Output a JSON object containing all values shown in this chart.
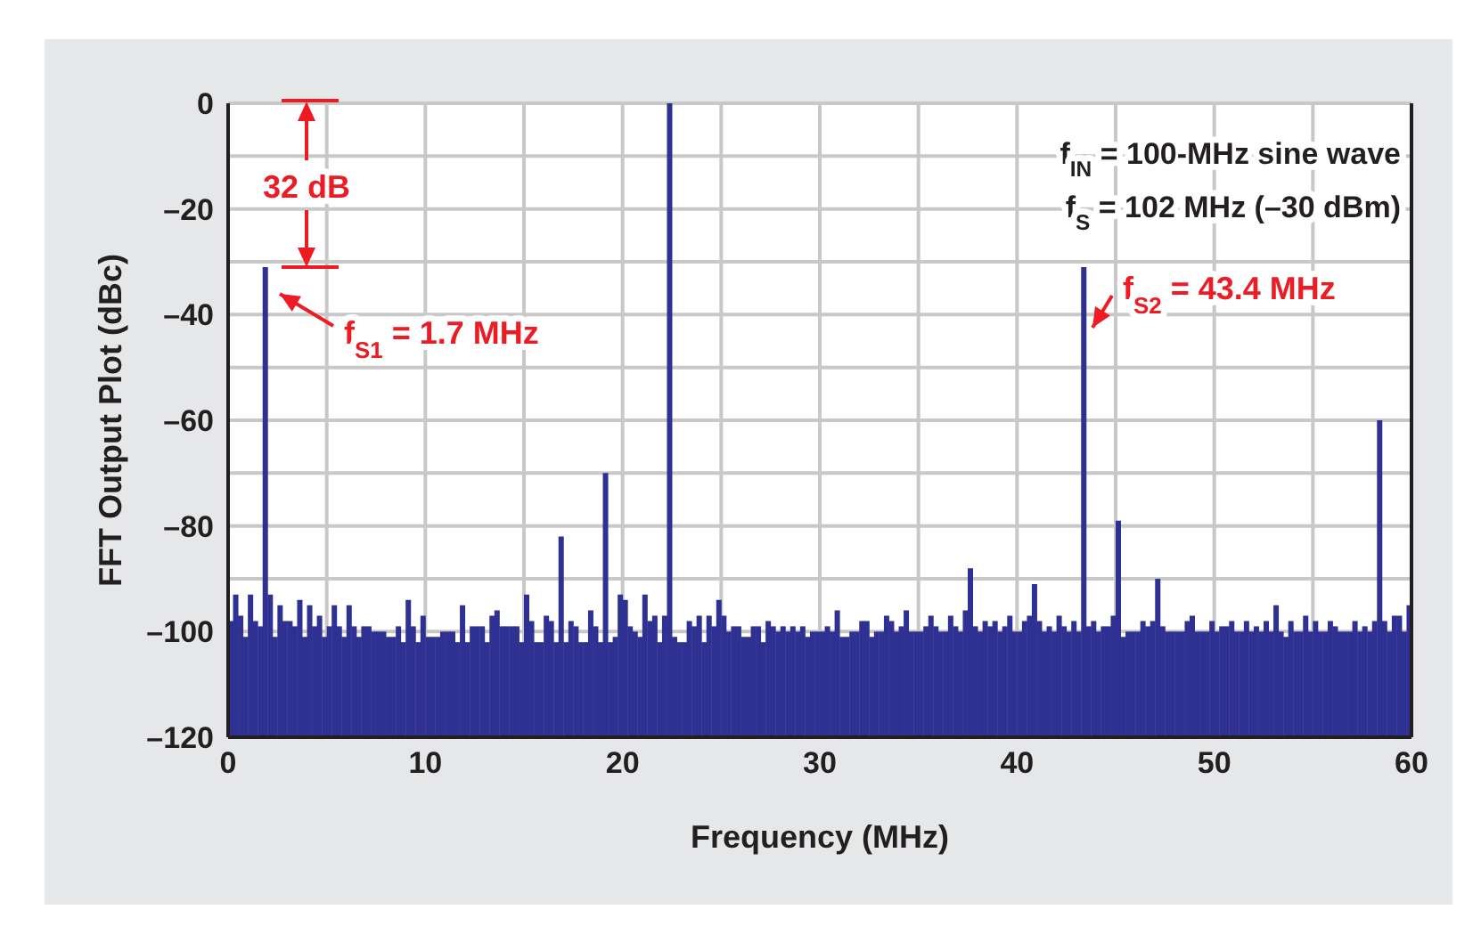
{
  "chart_data": {
    "type": "bar",
    "xlabel": "Frequency (MHz)",
    "ylabel": "FFT Output Plot (dBc)",
    "color": "#2e3192",
    "x": [
      0.125,
      0.375,
      0.625,
      0.875,
      1.125,
      1.375,
      1.625,
      1.875,
      2.125,
      2.375,
      2.625,
      2.875,
      3.125,
      3.375,
      3.625,
      3.875,
      4.125,
      4.375,
      4.625,
      4.875,
      5.125,
      5.375,
      5.625,
      5.875,
      6.125,
      6.375,
      6.625,
      6.875,
      7.125,
      7.375,
      7.625,
      7.875,
      8.125,
      8.375,
      8.625,
      8.875,
      9.125,
      9.375,
      9.625,
      9.875,
      10.125,
      10.375,
      10.625,
      10.875,
      11.125,
      11.375,
      11.625,
      11.875,
      12.125,
      12.375,
      12.625,
      12.875,
      13.125,
      13.375,
      13.625,
      13.875,
      14.125,
      14.375,
      14.625,
      14.875,
      15.125,
      15.375,
      15.625,
      15.875,
      16.125,
      16.375,
      16.625,
      16.875,
      17.125,
      17.375,
      17.625,
      17.875,
      18.125,
      18.375,
      18.625,
      18.875,
      19.125,
      19.375,
      19.625,
      19.875,
      20.125,
      20.375,
      20.625,
      20.875,
      21.125,
      21.375,
      21.625,
      21.875,
      22.125,
      22.375,
      22.625,
      22.875,
      23.125,
      23.375,
      23.625,
      23.875,
      24.125,
      24.375,
      24.625,
      24.875,
      25.125,
      25.375,
      25.625,
      25.875,
      26.125,
      26.375,
      26.625,
      26.875,
      27.125,
      27.375,
      27.625,
      27.875,
      28.125,
      28.375,
      28.625,
      28.875,
      29.125,
      29.375,
      29.625,
      29.875,
      30.125,
      30.375,
      30.625,
      30.875,
      31.125,
      31.375,
      31.625,
      31.875,
      32.125,
      32.375,
      32.625,
      32.875,
      33.125,
      33.375,
      33.625,
      33.875,
      34.125,
      34.375,
      34.625,
      34.875,
      35.125,
      35.375,
      35.625,
      35.875,
      36.125,
      36.375,
      36.625,
      36.875,
      37.125,
      37.375,
      37.625,
      37.875,
      38.125,
      38.375,
      38.625,
      38.875,
      39.125,
      39.375,
      39.625,
      39.875,
      40.125,
      40.375,
      40.625,
      40.875,
      41.125,
      41.375,
      41.625,
      41.875,
      42.125,
      42.375,
      42.625,
      42.875,
      43.125,
      43.375,
      43.625,
      43.875,
      44.125,
      44.375,
      44.625,
      44.875,
      45.125,
      45.375,
      45.625,
      45.875,
      46.125,
      46.375,
      46.625,
      46.875,
      47.125,
      47.375,
      47.625,
      47.875,
      48.125,
      48.375,
      48.625,
      48.875,
      49.125,
      49.375,
      49.625,
      49.875,
      50.125,
      50.375,
      50.625,
      50.875,
      51.125,
      51.375,
      51.625,
      51.875,
      52.125,
      52.375,
      52.625,
      52.875,
      53.125,
      53.375,
      53.625,
      53.875,
      54.125,
      54.375,
      54.625,
      54.875,
      55.125,
      55.375,
      55.625,
      55.875,
      56.125,
      56.375,
      56.625,
      56.875,
      57.125,
      57.375,
      57.625,
      57.875,
      58.125,
      58.375,
      58.625,
      58.875,
      59.125,
      59.375,
      59.625,
      59.875
    ],
    "base": [
      -120,
      -120,
      -120,
      -120,
      -120,
      -120,
      -120,
      -120,
      -120,
      -120,
      -120,
      -120,
      -120,
      -120,
      -120,
      -120,
      -120,
      -120,
      -120,
      -120,
      -120,
      -120,
      -120,
      -120,
      -120,
      -120,
      -120,
      -120,
      -120,
      -120,
      -120,
      -120,
      -120,
      -120,
      -120,
      -120,
      -120,
      -120,
      -120,
      -120,
      -120,
      -120,
      -120,
      -120,
      -120,
      -120,
      -120,
      -120,
      -120,
      -120,
      -120,
      -120,
      -120,
      -120,
      -120,
      -120,
      -120,
      -120,
      -120,
      -120,
      -120,
      -120,
      -120,
      -120,
      -120,
      -120,
      -120,
      -120,
      -120,
      -120,
      -120,
      -120,
      -120,
      -120,
      -120,
      -120,
      -120,
      -120,
      -120,
      -120,
      -120,
      -120,
      -120,
      -120,
      -120,
      -120,
      -120,
      -120,
      -120,
      -120,
      -120,
      -120,
      -120,
      -120,
      -120,
      -120,
      -120,
      -120,
      -120,
      -120,
      -120,
      -120,
      -120,
      -120,
      -120,
      -120,
      -120,
      -120,
      -120,
      -120,
      -120,
      -120,
      -120,
      -120,
      -120,
      -120,
      -120,
      -120,
      -120,
      -120,
      -120,
      -120,
      -120,
      -120,
      -120,
      -120,
      -120,
      -120,
      -120,
      -120,
      -120,
      -120,
      -120,
      -120,
      -120,
      -120,
      -120,
      -120,
      -120,
      -120,
      -120,
      -120,
      -120,
      -120,
      -120,
      -120,
      -120,
      -120,
      -120,
      -120,
      -120,
      -120,
      -120,
      -120,
      -120,
      -120,
      -120,
      -120,
      -120,
      -120,
      -120,
      -120,
      -120,
      -120,
      -120,
      -120,
      -120,
      -120,
      -120,
      -120,
      -120,
      -120,
      -120,
      -120,
      -120,
      -120,
      -120,
      -120,
      -120,
      -120,
      -120,
      -120,
      -120,
      -120,
      -120,
      -120,
      -120,
      -120,
      -120,
      -120,
      -120,
      -120,
      -120,
      -120,
      -120,
      -120,
      -120,
      -120,
      -120,
      -120,
      -120,
      -120,
      -120,
      -120,
      -120,
      -120,
      -120,
      -120,
      -120,
      -120,
      -120,
      -120,
      -120,
      -120,
      -120,
      -120,
      -120,
      -120,
      -120,
      -120,
      -120,
      -120,
      -120,
      -120,
      -120,
      -120,
      -120,
      -120,
      -120,
      -120,
      -120,
      -120,
      -120,
      -120,
      -120,
      -120,
      -120,
      -120,
      -120,
      -120
    ],
    "values": [
      22,
      27,
      23,
      19,
      27,
      22,
      21,
      89,
      27,
      19,
      25,
      22,
      22,
      21,
      26,
      19,
      25,
      21,
      23,
      19,
      21,
      25,
      21,
      19,
      25,
      21,
      19,
      21,
      21,
      20,
      20,
      20,
      19,
      19,
      21,
      18,
      26,
      21,
      18,
      23,
      19,
      19,
      19,
      20,
      20,
      20,
      18,
      25,
      18,
      21,
      21,
      21,
      18,
      23,
      24,
      21,
      21,
      21,
      21,
      18,
      27,
      22,
      18,
      18,
      23,
      22,
      18,
      38,
      18,
      22,
      21,
      18,
      18,
      24,
      21,
      18,
      50,
      18,
      19,
      27,
      26,
      21,
      20,
      19,
      27,
      22,
      23,
      18,
      23,
      120,
      19,
      18,
      18,
      22,
      21,
      23,
      18,
      23,
      21,
      26,
      23,
      20,
      21,
      21,
      19,
      19,
      21,
      21,
      18,
      22,
      21,
      20,
      21,
      20,
      21,
      20,
      21,
      19,
      20,
      20,
      20,
      21,
      20,
      24,
      19,
      19,
      20,
      20,
      22,
      22,
      19,
      20,
      20,
      23,
      22,
      20,
      21,
      24,
      20,
      20,
      20,
      21,
      23,
      21,
      20,
      20,
      23,
      21,
      20,
      24,
      32,
      21,
      20,
      22,
      21,
      22,
      20,
      21,
      23,
      20,
      20,
      22,
      23,
      29,
      22,
      20,
      21,
      20,
      23,
      21,
      20,
      22,
      20,
      89,
      21,
      22,
      20,
      21,
      21,
      23,
      41,
      19,
      20,
      20,
      20,
      22,
      21,
      22,
      30,
      21,
      20,
      20,
      20,
      20,
      22,
      23,
      20,
      20,
      20,
      22,
      20,
      21,
      21,
      22,
      20,
      20,
      22,
      20,
      21,
      20,
      22,
      20,
      25,
      20,
      19,
      22,
      20,
      20,
      23,
      20,
      22,
      20,
      20,
      22,
      21,
      20,
      20,
      20,
      22,
      20,
      21,
      20,
      22,
      60,
      22,
      20,
      23,
      23,
      20,
      25
    ],
    "xlim": [
      0,
      60
    ],
    "xticks": [
      0,
      {
        "value": 5,
        "label": null
      },
      10,
      {
        "value": 15,
        "label": null
      },
      20,
      {
        "value": 25,
        "label": null
      },
      30,
      {
        "value": 35,
        "label": null
      },
      40,
      {
        "value": 45,
        "label": null
      },
      50,
      {
        "value": 55,
        "label": null
      },
      60
    ],
    "ylim": [
      -120,
      0
    ],
    "yticks": [
      {
        "value": -120,
        "label": "–120"
      },
      {
        "value": -100,
        "label": "–100"
      },
      {
        "value": -90,
        "label": null
      },
      {
        "value": -80,
        "label": "–80"
      },
      {
        "value": -70,
        "label": null
      },
      {
        "value": -60,
        "label": "–60"
      },
      {
        "value": -50,
        "label": null
      },
      {
        "value": -40,
        "label": "–40"
      },
      {
        "value": -30,
        "label": null
      },
      {
        "value": -20,
        "label": "–20"
      },
      {
        "value": -10,
        "label": null
      },
      0
    ],
    "grid": true,
    "annotations": [
      "32 dB",
      "f$_{S1}$ = 1.7 MHz",
      "f$_{S2}$ = 43.4 MHz",
      "f$_{IN}$ = 100-MHz sine wave",
      "f$_{S}$ = 102 MHz (–30 dBm)"
    ]
  }
}
